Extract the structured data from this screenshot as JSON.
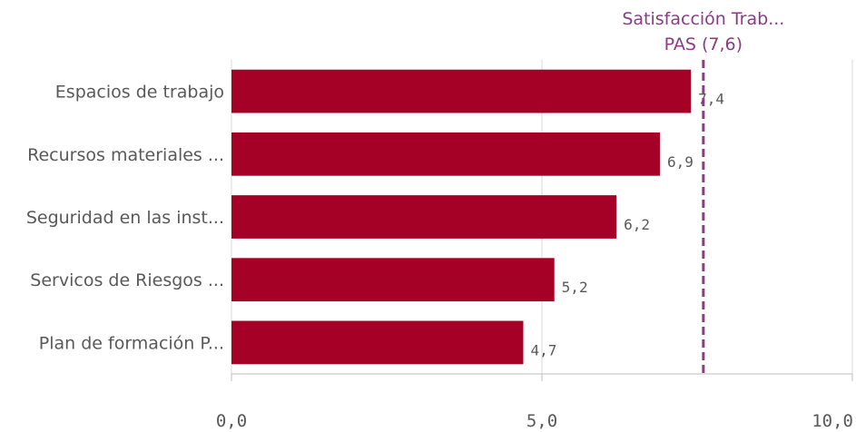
{
  "chart_data": {
    "type": "bar",
    "orientation": "horizontal",
    "categories": [
      "Espacios de trabajo",
      "Recursos materiales ...",
      "Seguridad en las inst...",
      "Servicos de Riesgos ...",
      "Plan de formación P..."
    ],
    "values": [
      7.4,
      6.9,
      6.2,
      5.2,
      4.7
    ],
    "value_labels": [
      "7,4",
      "6,9",
      "6,2",
      "5,2",
      "4,7"
    ],
    "xlim": [
      0,
      10
    ],
    "x_ticks": [
      0,
      5,
      10
    ],
    "x_tick_labels": [
      "0,0",
      "5,0",
      "10,0"
    ],
    "grid": "vertical",
    "bar_color": "#a50026",
    "reference_line": {
      "value": 7.6,
      "label_line1": "Satisfacción Trab...",
      "label_line2": "PAS (7,6)",
      "color": "#8a3c84",
      "style": "dashed"
    }
  }
}
